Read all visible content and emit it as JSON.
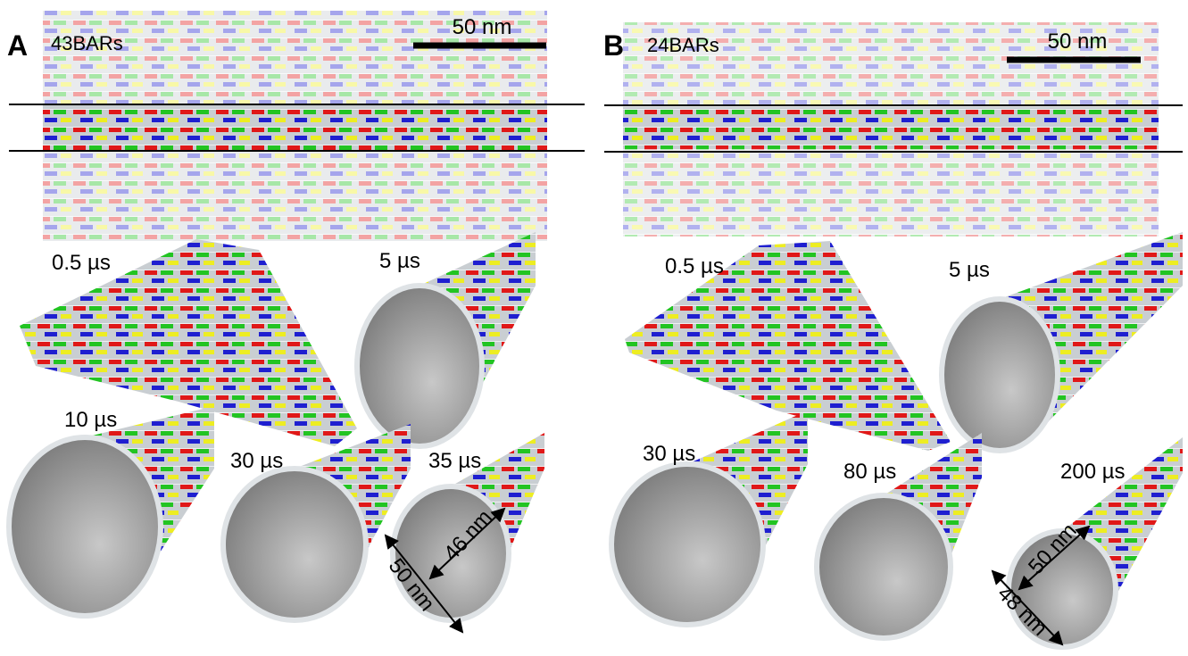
{
  "panels": [
    {
      "label": "A",
      "name": "43BARs",
      "scale_bar": "50 nm",
      "snapshots": [
        "0.5 µs",
        "5 µs",
        "10 µs",
        "30 µs",
        "35 µs"
      ],
      "dimensions": [
        "50 nm",
        "46 nm"
      ]
    },
    {
      "label": "B",
      "name": "24BARs",
      "scale_bar": "50 nm",
      "snapshots": [
        "0.5 µs",
        "5 µs",
        "30 µs",
        "80 µs",
        "200 µs"
      ],
      "dimensions": [
        "50 nm",
        "48 nm"
      ]
    }
  ]
}
